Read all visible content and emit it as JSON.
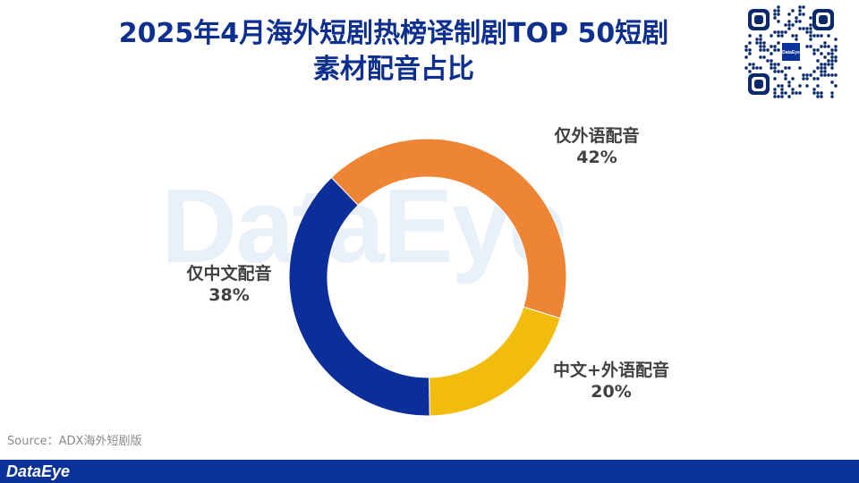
{
  "header": {
    "title_line1": "2025年4月海外短剧热榜译制剧TOP 50短剧",
    "title_line2": "素材配音占比"
  },
  "brand": {
    "watermark": "DataEye",
    "footer_logo": "DataEye",
    "qr_badge": "DataEye",
    "accent_color": "#0a3299"
  },
  "source": {
    "text": "Source：ADX海外短剧版"
  },
  "chart_data": {
    "type": "pie",
    "style": "donut",
    "categories": [
      "仅外语配音",
      "中文+外语配音",
      "仅中文配音"
    ],
    "values": [
      42,
      20,
      38
    ],
    "value_labels": [
      "42%",
      "20%",
      "38%"
    ],
    "colors": [
      "#ee8534",
      "#f2bc0e",
      "#0b2e9a"
    ],
    "title": "2025年4月海外短剧热榜译制剧TOP 50短剧素材配音占比",
    "legend": "none"
  }
}
